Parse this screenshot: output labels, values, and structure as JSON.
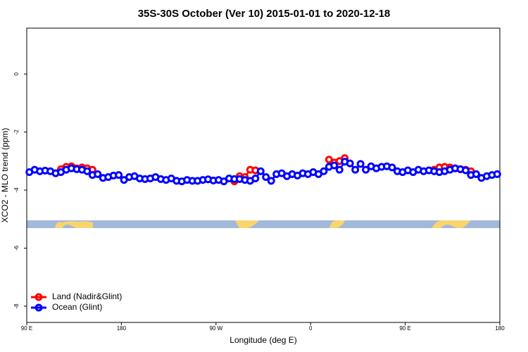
{
  "chart_data": {
    "type": "line",
    "title": "35S-30S October (Ver 10)   2015-01-01 to 2020-12-18",
    "x_label": "Longitude (deg E)",
    "y_label": "XCO2 - MLO trend (ppm)",
    "xlim": [
      90,
      540
    ],
    "ylim": [
      -8.56,
      1.58
    ],
    "xticks": [
      {
        "value": 90,
        "label": "90 E"
      },
      180,
      {
        "value": 270,
        "label": "90 W"
      },
      {
        "value": 360,
        "label": "0"
      },
      {
        "value": 450,
        "label": "90 E"
      },
      {
        "value": 540,
        "label": "180"
      }
    ],
    "yticks": [
      0,
      -2,
      -4,
      -6,
      -8
    ],
    "legend": "bottom-left",
    "x": [
      92.5,
      97.5,
      102.5,
      107.5,
      112.5,
      117.5,
      122.5,
      127.5,
      132.5,
      137.5,
      142.5,
      147.5,
      152.5,
      157.5,
      162.5,
      167.5,
      172.5,
      177.5,
      182.5,
      187.5,
      192.5,
      197.5,
      202.5,
      207.5,
      212.5,
      217.5,
      222.5,
      227.5,
      232.5,
      237.5,
      242.5,
      247.5,
      252.5,
      257.5,
      262.5,
      267.5,
      272.5,
      277.5,
      282.5,
      287.5,
      292.5,
      297.5,
      302.5,
      307.5,
      312.5,
      317.5,
      322.5,
      327.5,
      332.5,
      337.5,
      342.5,
      347.5,
      352.5,
      357.5,
      362.5,
      367.5,
      372.5,
      377.5,
      382.5,
      387.5,
      392.5,
      397.5,
      402.5,
      407.5,
      412.5,
      417.5,
      422.5,
      427.5,
      432.5,
      437.5,
      442.5,
      447.5,
      452.5,
      457.5,
      462.5,
      467.5,
      472.5,
      477.5,
      482.5,
      487.5,
      492.5,
      497.5,
      502.5,
      507.5,
      512.5,
      517.5,
      522.5,
      527.5,
      532.5,
      537.5
    ],
    "series": [
      {
        "name": "Land (Nadir&Glint)",
        "color": "#ff0000",
        "values": [
          null,
          null,
          null,
          null,
          null,
          null,
          -3.28,
          -3.2,
          -3.18,
          -3.25,
          -3.22,
          -3.25,
          -3.3,
          null,
          null,
          null,
          null,
          null,
          null,
          null,
          null,
          null,
          null,
          null,
          null,
          null,
          null,
          null,
          null,
          null,
          null,
          null,
          null,
          null,
          null,
          null,
          null,
          null,
          null,
          -3.7,
          -3.52,
          -3.55,
          -3.3,
          -3.32,
          null,
          null,
          null,
          null,
          null,
          null,
          null,
          null,
          null,
          null,
          null,
          null,
          null,
          -2.95,
          -3.05,
          -3.0,
          -2.9,
          null,
          null,
          null,
          null,
          null,
          null,
          null,
          null,
          null,
          null,
          null,
          null,
          null,
          null,
          null,
          null,
          -3.3,
          -3.22,
          -3.2,
          -3.22,
          -3.25,
          -3.28,
          -3.3,
          -3.35,
          null,
          null,
          null,
          null,
          null
        ]
      },
      {
        "name": "Ocean (Glint)",
        "color": "#0000ff",
        "values": [
          -3.38,
          -3.3,
          -3.35,
          -3.33,
          -3.35,
          -3.42,
          -3.38,
          -3.3,
          -3.25,
          -3.28,
          -3.3,
          -3.35,
          -3.48,
          -3.45,
          -3.58,
          -3.55,
          -3.5,
          -3.48,
          -3.65,
          -3.55,
          -3.52,
          -3.6,
          -3.62,
          -3.6,
          -3.55,
          -3.62,
          -3.65,
          -3.6,
          -3.68,
          -3.7,
          -3.65,
          -3.68,
          -3.68,
          -3.65,
          -3.63,
          -3.67,
          -3.65,
          -3.7,
          -3.6,
          -3.62,
          -3.62,
          -3.65,
          -3.68,
          -3.6,
          -3.35,
          -3.55,
          -3.68,
          -3.45,
          -3.42,
          -3.52,
          -3.45,
          -3.5,
          -3.42,
          -3.45,
          -3.38,
          -3.45,
          -3.35,
          -3.2,
          -3.15,
          -3.3,
          -3.02,
          -3.08,
          -3.3,
          -3.1,
          -3.3,
          -3.18,
          -3.25,
          -3.2,
          -3.18,
          -3.22,
          -3.35,
          -3.38,
          -3.32,
          -3.38,
          -3.3,
          -3.35,
          -3.32,
          -3.35,
          -3.38,
          -3.35,
          -3.3,
          -3.25,
          -3.28,
          -3.32,
          -3.48,
          -3.45,
          -3.58,
          -3.52,
          -3.48,
          -3.45
        ]
      }
    ]
  }
}
